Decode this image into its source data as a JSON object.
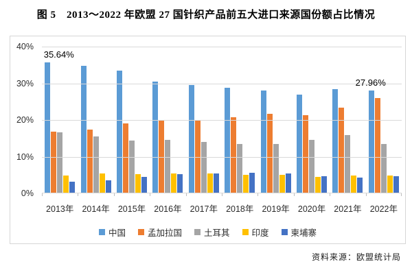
{
  "header": {
    "title": "图 5　2013～2022 年欧盟 27 国针织产品前五大进口来源国份额占比情况"
  },
  "footer": {
    "source": "资料来源：欧盟统计局"
  },
  "chart_data": {
    "type": "bar",
    "title": "图 5　2013～2022 年欧盟 27 国针织产品前五大进口来源国份额占比情况",
    "categories": [
      "2013年",
      "2014年",
      "2015年",
      "2016年",
      "2017年",
      "2018年",
      "2019年",
      "2020年",
      "2021年",
      "2022年"
    ],
    "series": [
      {
        "name": "中国",
        "color": "#5B9BD5",
        "values": [
          35.64,
          34.8,
          33.5,
          30.4,
          29.5,
          28.8,
          28.0,
          27.0,
          28.5,
          27.96
        ]
      },
      {
        "name": "孟加拉国",
        "color": "#ED7D31",
        "values": [
          16.8,
          17.4,
          19.1,
          20.0,
          20.0,
          20.8,
          21.6,
          21.4,
          23.3,
          25.9
        ]
      },
      {
        "name": "土耳其",
        "color": "#A5A5A5",
        "values": [
          16.6,
          15.6,
          14.4,
          14.5,
          14.0,
          13.5,
          13.4,
          14.6,
          15.8,
          13.5
        ]
      },
      {
        "name": "印度",
        "color": "#FFC000",
        "values": [
          4.9,
          5.4,
          5.3,
          5.4,
          5.4,
          5.1,
          5.1,
          4.5,
          4.9,
          4.9
        ]
      },
      {
        "name": "柬埔寨",
        "color": "#4472C4",
        "values": [
          3.1,
          3.6,
          4.4,
          5.2,
          5.4,
          5.6,
          5.5,
          4.7,
          4.3,
          4.6
        ]
      }
    ],
    "y_ticks": [
      "40%",
      "30%",
      "20%",
      "10%",
      "0%"
    ],
    "ylim": [
      0,
      40
    ],
    "grid": true,
    "legend_position": "bottom",
    "annotations": [
      {
        "text": "35.64%",
        "series": "中国",
        "category": "2013年",
        "value": 35.64
      },
      {
        "text": "27.96%",
        "series": "中国",
        "category": "2022年",
        "value": 27.96
      }
    ],
    "gridline_color": "#d9d9d9",
    "frame_border_color": "#d6d6d6"
  }
}
